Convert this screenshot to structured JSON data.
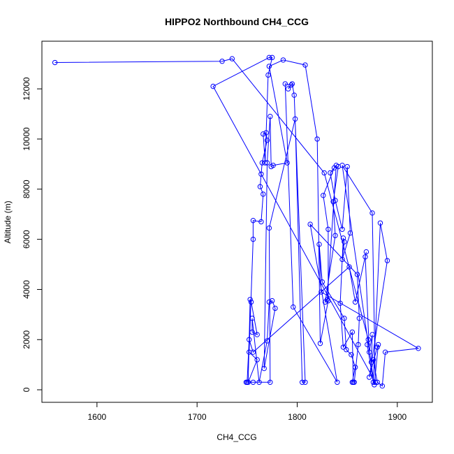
{
  "chart_data": {
    "type": "line",
    "title": "HIPPO2 Northbound CH4_CCG",
    "xlabel": "CH4_CCG",
    "ylabel": "Altitude (m)",
    "xlim": [
      1545,
      1935
    ],
    "ylim": [
      -500,
      13900
    ],
    "xticks": [
      1600,
      1700,
      1800,
      1900
    ],
    "yticks": [
      0,
      2000,
      4000,
      6000,
      8000,
      10000,
      12000
    ],
    "grid": false,
    "legend": "none",
    "series_color": "#0000ff",
    "points": [
      [
        1558,
        13050
      ],
      [
        1725,
        13100
      ],
      [
        1735,
        13200
      ],
      [
        1827,
        8650
      ],
      [
        1871,
        2000
      ],
      [
        1870,
        1800
      ],
      [
        1876,
        300
      ],
      [
        1883,
        6650
      ],
      [
        1890,
        5150
      ],
      [
        1872,
        500
      ],
      [
        1880,
        1700
      ],
      [
        1881,
        1800
      ],
      [
        1877,
        200
      ],
      [
        1845,
        8950
      ],
      [
        1875,
        7050
      ],
      [
        1878,
        300
      ],
      [
        1716,
        12100
      ],
      [
        1772,
        13250
      ],
      [
        1775,
        13250
      ],
      [
        1771,
        12550
      ],
      [
        1768,
        9050
      ],
      [
        1766,
        10200
      ],
      [
        1769,
        10250
      ],
      [
        1770,
        9950
      ],
      [
        1765,
        9050
      ],
      [
        1764,
        8600
      ],
      [
        1763,
        8100
      ],
      [
        1766,
        7800
      ],
      [
        1764,
        6700
      ],
      [
        1756,
        6750
      ],
      [
        1756,
        6000
      ],
      [
        1752,
        1500
      ],
      [
        1760,
        1200
      ],
      [
        1751,
        300
      ],
      [
        1753,
        3600
      ],
      [
        1754,
        3500
      ],
      [
        1760,
        2200
      ],
      [
        1755,
        2300
      ],
      [
        1755,
        2850
      ],
      [
        1762,
        300
      ],
      [
        1770,
        1950
      ],
      [
        1772,
        3500
      ],
      [
        1775,
        3550
      ],
      [
        1778,
        3250
      ],
      [
        1767,
        850
      ],
      [
        1770,
        9050
      ],
      [
        1773,
        10900
      ],
      [
        1774,
        8900
      ],
      [
        1776,
        8950
      ],
      [
        1790,
        9050
      ],
      [
        1772,
        12900
      ],
      [
        1786,
        13150
      ],
      [
        1808,
        12950
      ],
      [
        1820,
        10000
      ],
      [
        1823,
        1850
      ],
      [
        1831,
        3550
      ],
      [
        1831,
        6400
      ],
      [
        1826,
        7750
      ],
      [
        1837,
        8850
      ],
      [
        1841,
        8900
      ],
      [
        1836,
        7500
      ],
      [
        1838,
        6150
      ],
      [
        1828,
        3500
      ],
      [
        1830,
        3600
      ],
      [
        1839,
        8950
      ],
      [
        1833,
        8650
      ],
      [
        1838,
        7550
      ],
      [
        1845,
        6400
      ],
      [
        1850,
        8900
      ],
      [
        1853,
        6250
      ],
      [
        1845,
        5200
      ],
      [
        1847,
        5900
      ],
      [
        1846,
        6050
      ],
      [
        1843,
        3450
      ],
      [
        1846,
        1700
      ],
      [
        1855,
        2300
      ],
      [
        1856,
        300
      ],
      [
        1857,
        300
      ],
      [
        1861,
        1800
      ],
      [
        1862,
        2850
      ],
      [
        1860,
        4600
      ],
      [
        1813,
        6600
      ],
      [
        1840,
        300
      ],
      [
        1796,
        3300
      ],
      [
        1788,
        12200
      ],
      [
        1794,
        12150
      ],
      [
        1791,
        12000
      ],
      [
        1795,
        12200
      ],
      [
        1797,
        11750
      ],
      [
        1808,
        300
      ],
      [
        1805,
        300
      ],
      [
        1798,
        10800
      ],
      [
        1772,
        6450
      ],
      [
        1773,
        300
      ],
      [
        1756,
        300
      ],
      [
        1749,
        300
      ],
      [
        1750,
        300
      ],
      [
        1752,
        2000
      ],
      [
        1756,
        1500
      ],
      [
        1852,
        4900
      ],
      [
        1858,
        3500
      ],
      [
        1869,
        5500
      ],
      [
        1868,
        5300
      ],
      [
        1872,
        1500
      ],
      [
        1875,
        2200
      ],
      [
        1874,
        1100
      ],
      [
        1876,
        1200
      ],
      [
        1880,
        300
      ],
      [
        1885,
        150
      ],
      [
        1888,
        1500
      ],
      [
        1921,
        1650
      ],
      [
        1824,
        3900
      ],
      [
        1822,
        5800
      ],
      [
        1825,
        4300
      ],
      [
        1847,
        2850
      ],
      [
        1849,
        1600
      ],
      [
        1854,
        1400
      ],
      [
        1858,
        900
      ],
      [
        1855,
        300
      ]
    ]
  }
}
